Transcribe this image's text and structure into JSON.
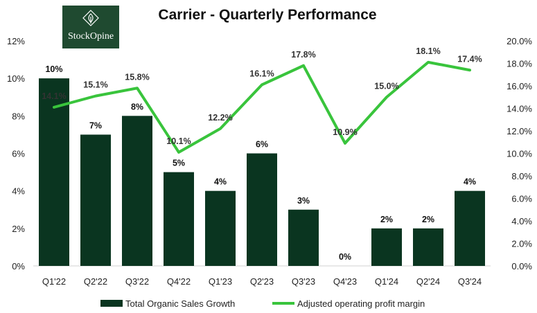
{
  "logo": {
    "text": "StockOpine",
    "bg_color": "#1f4a30",
    "icon": "diamond-leaf-icon"
  },
  "chart_data": {
    "type": "bar",
    "title": "Carrier - Quarterly Performance",
    "categories": [
      "Q1'22",
      "Q2'22",
      "Q3'22",
      "Q4'22",
      "Q1'23",
      "Q2'23",
      "Q3'23",
      "Q4'23",
      "Q1'24",
      "Q2'24",
      "Q3'24"
    ],
    "series": [
      {
        "name": "Total Organic Sales Growth",
        "type": "bar",
        "axis": "left",
        "color": "#0a3520",
        "values": [
          10,
          7,
          8,
          5,
          4,
          6,
          3,
          0,
          2,
          2,
          4
        ],
        "labels": [
          "10%",
          "7%",
          "8%",
          "5%",
          "4%",
          "6%",
          "3%",
          "0%",
          "2%",
          "2%",
          "4%"
        ]
      },
      {
        "name": "Adjusted operating profit margin",
        "type": "line",
        "axis": "right",
        "color": "#39c43c",
        "values": [
          14.1,
          15.1,
          15.8,
          10.1,
          12.2,
          16.1,
          17.8,
          10.9,
          15.0,
          18.1,
          17.4
        ],
        "labels": [
          "14.1%",
          "15.1%",
          "15.8%",
          "10.1%",
          "12.2%",
          "16.1%",
          "17.8%",
          "10.9%",
          "15.0%",
          "18.1%",
          "17.4%"
        ]
      }
    ],
    "y_left": {
      "ylim": [
        0,
        12
      ],
      "ticks": [
        "0%",
        "2%",
        "4%",
        "6%",
        "8%",
        "10%",
        "12%"
      ]
    },
    "y_right": {
      "ylim": [
        0,
        20
      ],
      "ticks": [
        "0.0%",
        "2.0%",
        "4.0%",
        "6.0%",
        "8.0%",
        "10.0%",
        "12.0%",
        "14.0%",
        "16.0%",
        "18.0%",
        "20.0%"
      ]
    },
    "grid": false,
    "legend_position": "bottom"
  }
}
